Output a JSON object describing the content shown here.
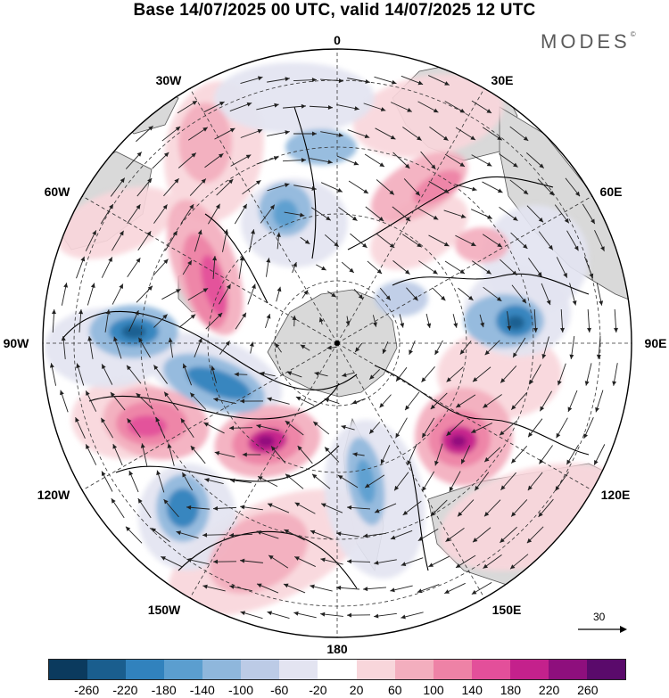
{
  "title": "Base 14/07/2025 00 UTC, valid 14/07/2025 12 UTC",
  "brand": "MODES",
  "brand_mark": "©",
  "longitude_labels": {
    "lon_0": "0",
    "lon_30e": "30E",
    "lon_60e": "60E",
    "lon_90e": "90E",
    "lon_120e": "120E",
    "lon_150e": "150E",
    "lon_180": "180",
    "lon_150w": "150W",
    "lon_120w": "120W",
    "lon_90w": "90W",
    "lon_60w": "60W",
    "lon_30w": "30W"
  },
  "reference_vector_label": "30",
  "colorbar": {
    "colors": [
      "#0b3a5e",
      "#1a5e8e",
      "#3182bd",
      "#5b9ecf",
      "#8fb7dc",
      "#bccbe6",
      "#e3e4f1",
      "#ffffff",
      "#f8d6db",
      "#f3aebe",
      "#ee82a6",
      "#e34f9a",
      "#c4218c",
      "#8e0f7d",
      "#5a0a6b"
    ],
    "tick_labels": [
      "-260",
      "-220",
      "-180",
      "-140",
      "-100",
      "-60",
      "-20",
      "20",
      "60",
      "100",
      "140",
      "180",
      "220",
      "260"
    ]
  },
  "colors": {
    "land": "#d9d9d9",
    "coast": "#555555",
    "grid": "#333333",
    "arrow": "#222222",
    "contour": "#000000"
  }
}
